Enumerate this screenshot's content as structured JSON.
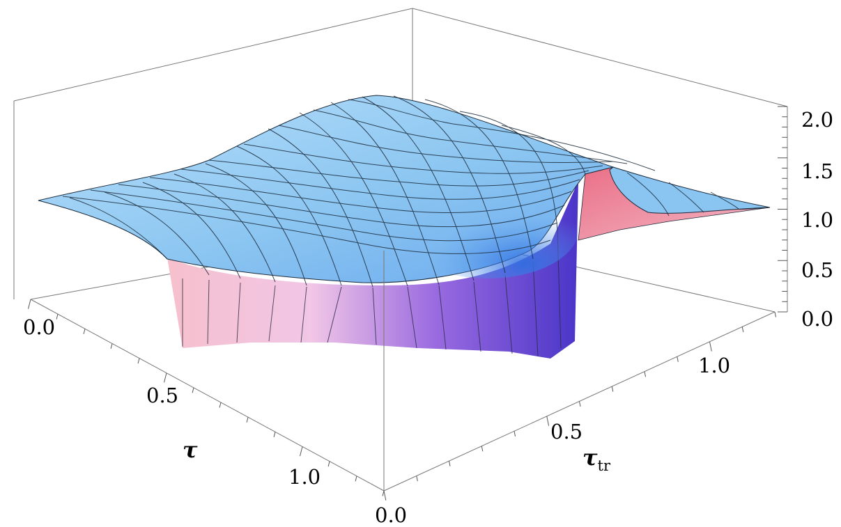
{
  "chart_data": {
    "type": "surface3d",
    "title": "",
    "axes": {
      "x": {
        "label": "τ",
        "range": [
          0.0,
          1.3
        ],
        "ticks": [
          "0.0",
          "0.5",
          "1.0"
        ]
      },
      "y": {
        "label": "τ",
        "label_subscript": "tr",
        "range": [
          0.0,
          1.2
        ],
        "ticks": [
          "0.0",
          "0.5",
          "1.0"
        ]
      },
      "z": {
        "range": [
          0.0,
          2.0
        ],
        "ticks": [
          "0.0",
          "0.5",
          "1.0",
          "1.5",
          "2.0"
        ]
      }
    },
    "box": true,
    "mesh": true,
    "grid": false,
    "legend": "none",
    "colors": {
      "surface_top": "#8ec8f2",
      "surface_shadow": "#3f7fd8",
      "wall_pink": "#f4c4d2",
      "wall_purple": "#5b3fd0",
      "ridge_red": "#e0607a",
      "mesh_line": "#1a2a3a"
    },
    "description_values": {
      "plateau_height_near_low_tau": 1.15,
      "plateau_peak_mid_tau": 1.8,
      "drop_to_near_zero_region": "tau < ~0.5 with tau_tr < ~0.5",
      "ridge_peak_value": 1.6
    }
  }
}
